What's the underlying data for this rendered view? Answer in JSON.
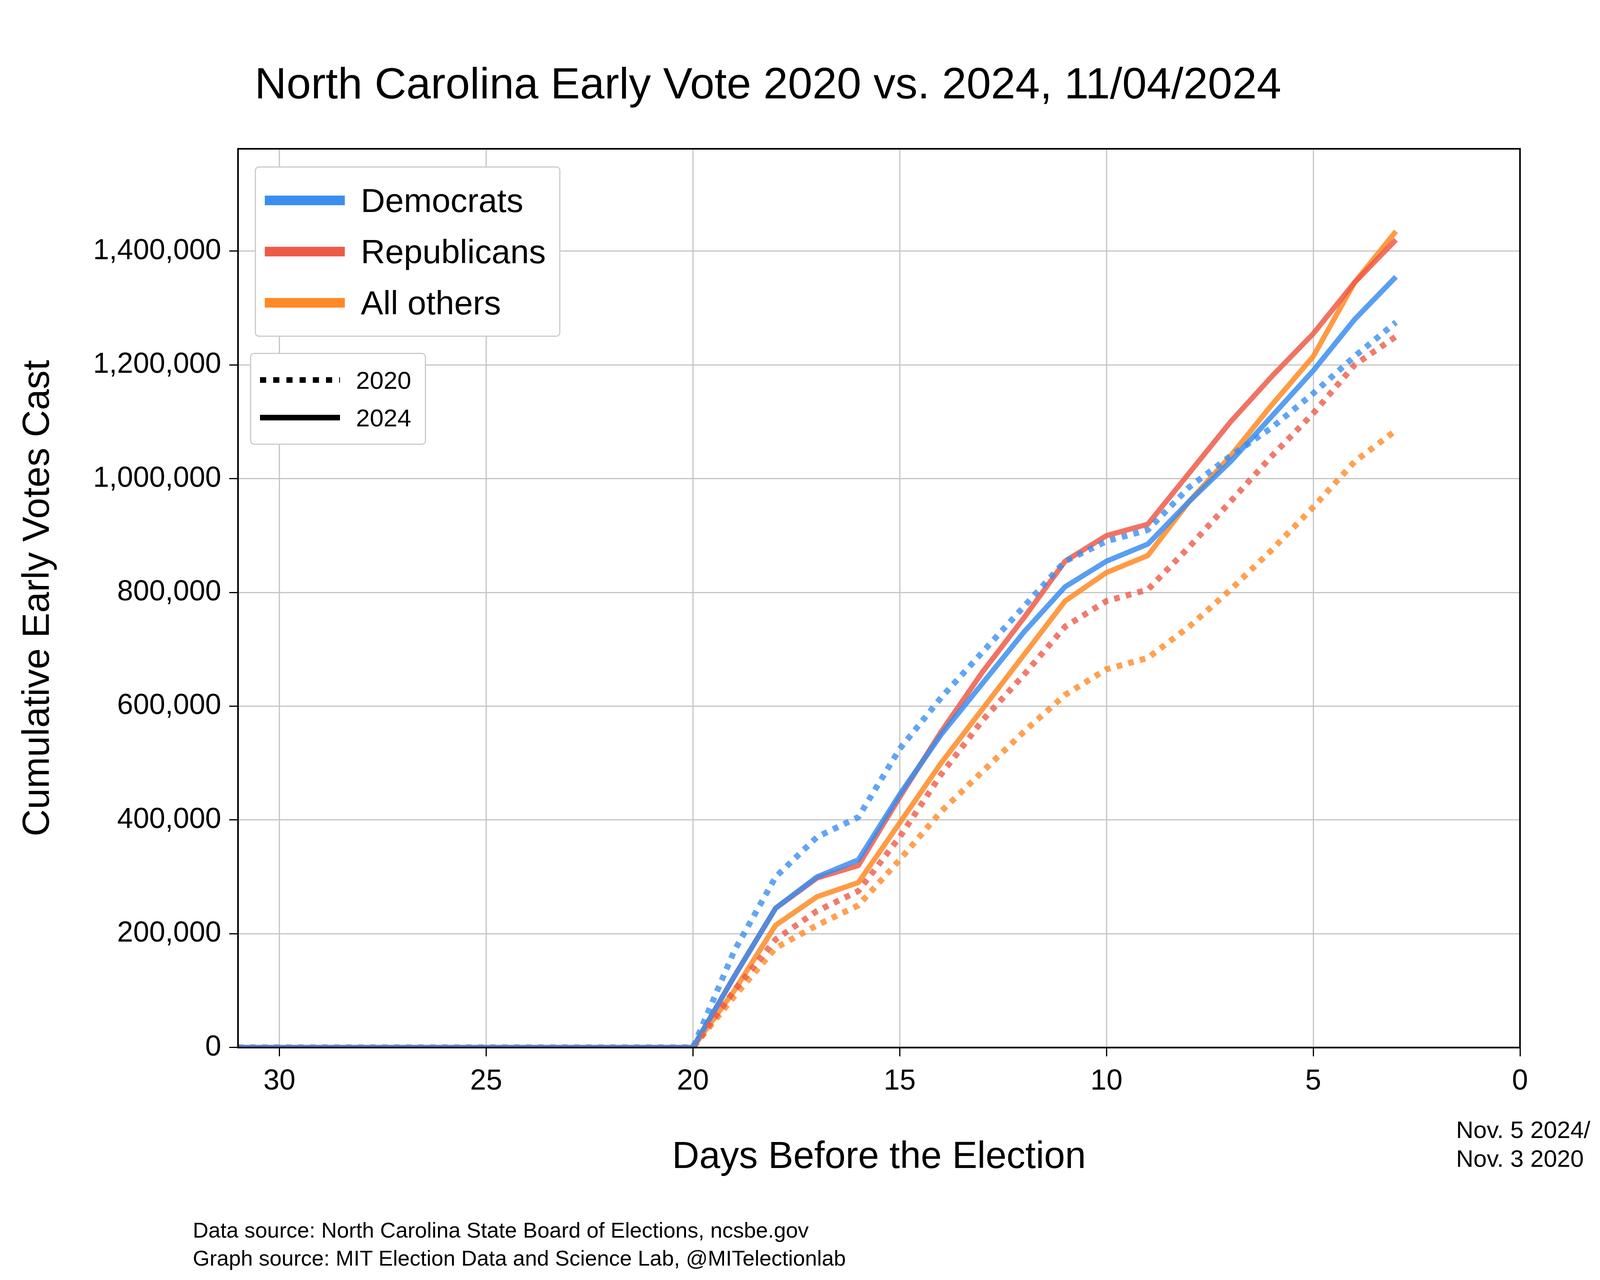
{
  "chart_data": {
    "type": "line",
    "title": "North Carolina Early Vote 2020 vs. 2024, 11/04/2024",
    "x_label": "Days Before the Election",
    "y_label": "Cumulative Early Votes Cast",
    "x": [
      31,
      30,
      29,
      28,
      27,
      26,
      25,
      24,
      23,
      22,
      21,
      20,
      19,
      18,
      17,
      16,
      15,
      14,
      13,
      12,
      11,
      10,
      9,
      8,
      7,
      6,
      5,
      4,
      3
    ],
    "xlim": [
      31,
      0
    ],
    "xticks": [
      30,
      25,
      20,
      15,
      10,
      5,
      0
    ],
    "ylim": [
      0,
      1580000
    ],
    "yticks": [
      0,
      {
        "value": 200000,
        "label": "200,000"
      },
      {
        "value": 400000,
        "label": "400,000"
      },
      {
        "value": 600000,
        "label": "600,000"
      },
      {
        "value": 800000,
        "label": "800,000"
      },
      {
        "value": 1000000,
        "label": "1,000,000"
      },
      {
        "value": 1200000,
        "label": "1,200,000"
      },
      {
        "value": 1400000,
        "label": "1,400,000"
      }
    ],
    "grid": true,
    "legend": "upper left",
    "legend_styles": [
      {
        "label": "2020",
        "line_style": "dotted"
      },
      {
        "label": "2024",
        "line_style": "solid"
      }
    ],
    "series": [
      {
        "name": "Democrats",
        "color": "#3b8ef0",
        "line_style": "dotted",
        "values": [
          0,
          0,
          0,
          0,
          0,
          0,
          0,
          0,
          0,
          0,
          0,
          0,
          170000,
          300000,
          370000,
          405000,
          525000,
          615000,
          695000,
          775000,
          855000,
          890000,
          910000,
          985000,
          1040000,
          1090000,
          1150000,
          1215000,
          1275000
        ]
      },
      {
        "name": "Republicans",
        "color": "#ee5a48",
        "line_style": "dotted",
        "values": [
          0,
          0,
          0,
          0,
          0,
          0,
          0,
          0,
          0,
          0,
          0,
          0,
          100000,
          190000,
          240000,
          275000,
          370000,
          480000,
          575000,
          655000,
          740000,
          785000,
          805000,
          880000,
          960000,
          1040000,
          1115000,
          1200000,
          1250000
        ]
      },
      {
        "name": "All others",
        "color": "#ff8a25",
        "line_style": "dotted",
        "values": [
          0,
          0,
          0,
          0,
          0,
          0,
          0,
          0,
          0,
          0,
          0,
          0,
          90000,
          175000,
          215000,
          250000,
          330000,
          415000,
          485000,
          555000,
          620000,
          665000,
          685000,
          740000,
          805000,
          875000,
          950000,
          1030000,
          1085000
        ]
      },
      {
        "name": "Democrats",
        "color": "#3b8ef0",
        "line_style": "solid",
        "values": [
          0,
          0,
          0,
          0,
          0,
          0,
          0,
          0,
          0,
          0,
          0,
          0,
          125000,
          245000,
          300000,
          330000,
          445000,
          550000,
          640000,
          730000,
          810000,
          855000,
          885000,
          960000,
          1030000,
          1110000,
          1190000,
          1280000,
          1355000
        ]
      },
      {
        "name": "Republicans",
        "color": "#ee5a48",
        "line_style": "solid",
        "values": [
          0,
          0,
          0,
          0,
          0,
          0,
          0,
          0,
          0,
          0,
          0,
          0,
          125000,
          245000,
          298000,
          320000,
          440000,
          555000,
          660000,
          755000,
          855000,
          900000,
          920000,
          1010000,
          1100000,
          1180000,
          1255000,
          1345000,
          1420000
        ]
      },
      {
        "name": "All others",
        "color": "#ff8a25",
        "line_style": "solid",
        "values": [
          0,
          0,
          0,
          0,
          0,
          0,
          0,
          0,
          0,
          0,
          0,
          0,
          100000,
          215000,
          265000,
          290000,
          395000,
          500000,
          595000,
          690000,
          785000,
          835000,
          865000,
          960000,
          1040000,
          1130000,
          1215000,
          1345000,
          1435000
        ]
      }
    ],
    "annotations": [
      "Nov. 5 2024/",
      "Nov. 3 2020"
    ],
    "notes": [
      "Data source: North Carolina State Board of Elections, ncsbe.gov",
      "Graph source: MIT Election Data and Science Lab, @MITelectionlab"
    ]
  }
}
